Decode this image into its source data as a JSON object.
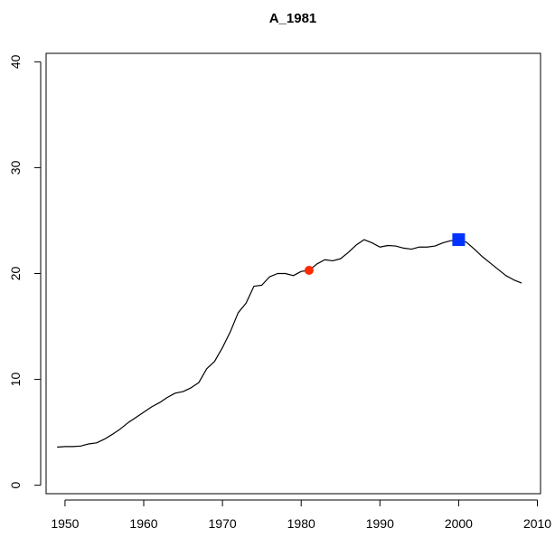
{
  "chart_data": {
    "type": "line",
    "title": "A_1981",
    "xlabel": "",
    "ylabel": "",
    "xlim": [
      1947.6,
      2010.4
    ],
    "ylim": [
      -0.8,
      40.8
    ],
    "xticks": [
      "1950",
      "1960",
      "1970",
      "1980",
      "1990",
      "2000",
      "2010"
    ],
    "yticks": [
      "0",
      "10",
      "20",
      "30",
      "40"
    ],
    "grid": false,
    "legend": "none",
    "series": [
      {
        "color": "#000000",
        "x": [
          1949,
          1950,
          1951,
          1952,
          1953,
          1954,
          1955,
          1956,
          1957,
          1958,
          1959,
          1960,
          1961,
          1962,
          1963,
          1964,
          1965,
          1966,
          1967,
          1968,
          1969,
          1970,
          1971,
          1972,
          1973,
          1974,
          1975,
          1976,
          1977,
          1978,
          1979,
          1980,
          1981,
          1982,
          1983,
          1984,
          1985,
          1986,
          1987,
          1988,
          1989,
          1990,
          1991,
          1992,
          1993,
          1994,
          1995,
          1996,
          1997,
          1998,
          1999,
          2000,
          2001,
          2002,
          2003,
          2004,
          2005,
          2006,
          2007,
          2008
        ],
        "y": [
          3.6,
          3.65,
          3.65,
          3.7,
          3.9,
          4.0,
          4.35,
          4.8,
          5.3,
          5.9,
          6.4,
          6.9,
          7.4,
          7.8,
          8.3,
          8.7,
          8.85,
          9.2,
          9.7,
          11.0,
          11.7,
          13.0,
          14.5,
          16.3,
          17.2,
          18.8,
          18.9,
          19.7,
          20.0,
          20.0,
          19.8,
          20.2,
          20.3,
          20.9,
          21.3,
          21.2,
          21.4,
          22.0,
          22.7,
          23.2,
          22.9,
          22.5,
          22.65,
          22.6,
          22.4,
          22.3,
          22.5,
          22.5,
          22.6,
          22.9,
          23.1,
          23.2,
          22.95,
          22.3,
          21.6,
          21.0,
          20.4,
          19.8,
          19.4,
          19.1
        ]
      }
    ],
    "markers": [
      {
        "shape": "circle",
        "color": "#ff2a00",
        "x": 1981,
        "y": 20.3
      },
      {
        "shape": "square",
        "color": "#0033ff",
        "x": 2000,
        "y": 23.2
      }
    ]
  }
}
